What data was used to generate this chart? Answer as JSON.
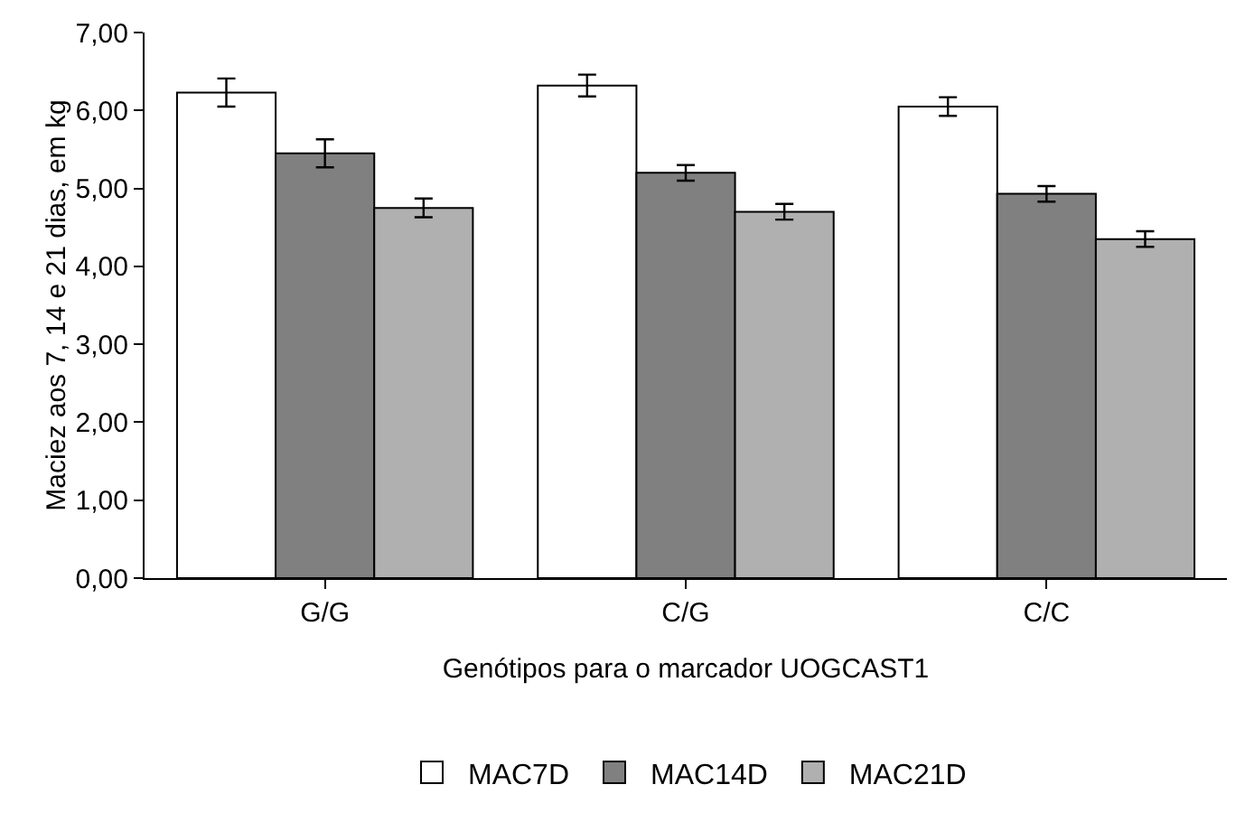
{
  "chart_data": {
    "type": "bar",
    "xlabel": "Genótipos para o marcador UOGCAST1",
    "ylabel": "Maciez aos 7, 14 e 21 dias, em kg",
    "categories": [
      "G/G",
      "C/G",
      "C/C"
    ],
    "series": [
      {
        "name": "MAC7D",
        "color": "#ffffff",
        "values": [
          6.23,
          6.32,
          6.05
        ],
        "errors": [
          0.18,
          0.14,
          0.12
        ]
      },
      {
        "name": "MAC14D",
        "color": "#808080",
        "values": [
          5.45,
          5.2,
          4.93
        ],
        "errors": [
          0.18,
          0.1,
          0.1
        ]
      },
      {
        "name": "MAC21D",
        "color": "#b0b0b0",
        "values": [
          4.75,
          4.7,
          4.35
        ],
        "errors": [
          0.12,
          0.1,
          0.1
        ]
      }
    ],
    "ylim": [
      0,
      7
    ],
    "yticks": [
      {
        "value": 0,
        "label": "0,00"
      },
      {
        "value": 1,
        "label": "1,00"
      },
      {
        "value": 2,
        "label": "2,00"
      },
      {
        "value": 3,
        "label": "3,00"
      },
      {
        "value": 4,
        "label": "4,00"
      },
      {
        "value": 5,
        "label": "5,00"
      },
      {
        "value": 6,
        "label": "6,00"
      },
      {
        "value": 7,
        "label": "7,00"
      }
    ],
    "grid": false,
    "legend": "bottom"
  }
}
